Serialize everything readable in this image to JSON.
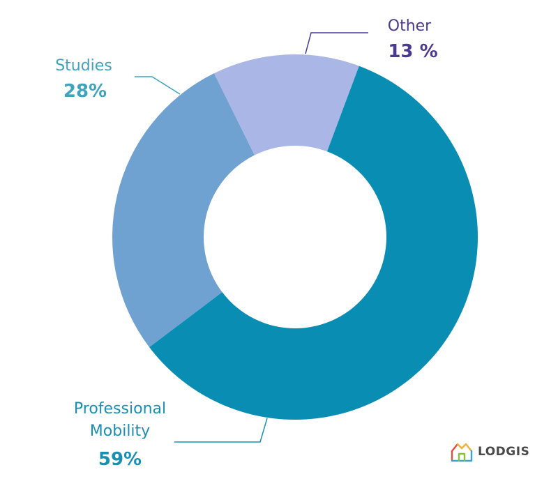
{
  "chart_data": {
    "type": "pie",
    "donut": true,
    "categories": [
      "Professional Mobility",
      "Studies",
      "Other"
    ],
    "values": [
      59,
      28,
      13
    ],
    "labels": [
      {
        "name_lines": [
          "Professional",
          "Mobility"
        ],
        "value": "59%"
      },
      {
        "name_lines": [
          "Studies"
        ],
        "value": "28%"
      },
      {
        "name_lines": [
          "Other"
        ],
        "value": "13 %"
      }
    ],
    "colors": [
      "#0a8db3",
      "#6fa2d1",
      "#aab6e6"
    ],
    "label_colors": [
      "#1a8fb2",
      "#3fa3be",
      "#4a3a8f"
    ],
    "title": "",
    "legend": "none"
  },
  "logo": {
    "text": "LODGIS",
    "icon": "house-icon",
    "colors": [
      "#e94e3c",
      "#f2b233",
      "#3aa0d8",
      "#8bbf3c"
    ]
  }
}
